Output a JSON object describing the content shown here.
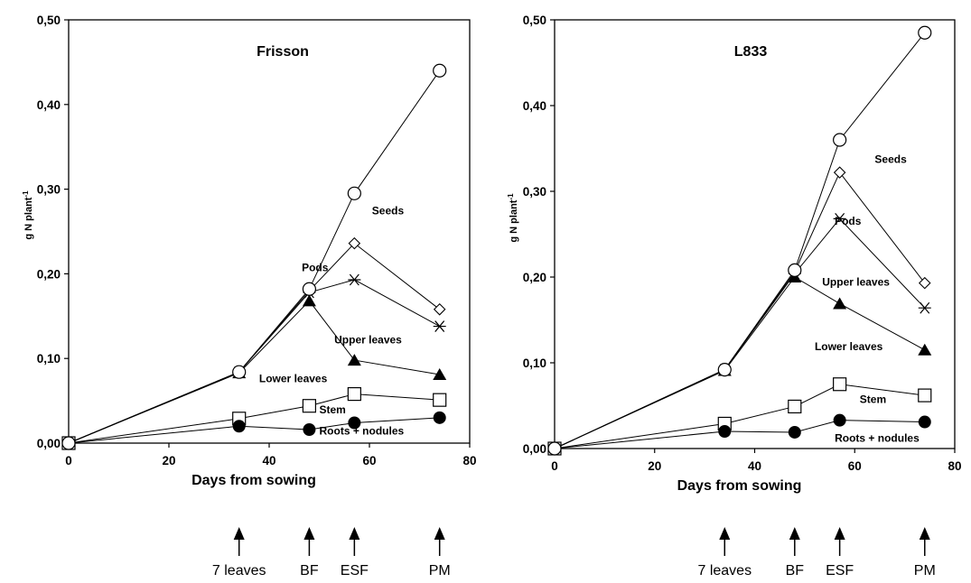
{
  "chart_data": [
    {
      "type": "line",
      "title": "Frisson",
      "xlabel": "Days from sowing",
      "ylabel": "g N plant",
      "ylabel_sup": "-1",
      "xlim": [
        0,
        80
      ],
      "ylim": [
        0,
        0.5
      ],
      "xticks": [
        0,
        20,
        40,
        60,
        80
      ],
      "xtick_labels": [
        "0",
        "20",
        "40",
        "60",
        "80"
      ],
      "yticks": [
        0,
        0.1,
        0.2,
        0.3,
        0.4,
        0.5
      ],
      "ytick_labels": [
        "0,00",
        "0,10",
        "0,20",
        "0,30",
        "0,40",
        "0,50"
      ],
      "grid": false,
      "x": [
        0,
        34,
        48,
        57,
        74
      ],
      "series": [
        {
          "name": "Seeds",
          "marker": "circle-open",
          "values": [
            0.0,
            0.084,
            0.182,
            0.295,
            0.44
          ]
        },
        {
          "name": "Pods",
          "marker": "diamond-open",
          "values": [
            0.0,
            0.084,
            0.18,
            0.236,
            0.158
          ]
        },
        {
          "name": "Upper leaves",
          "marker": "star",
          "values": [
            0.0,
            0.084,
            0.178,
            0.193,
            0.138
          ]
        },
        {
          "name": "Lower leaves",
          "marker": "triangle-filled",
          "values": [
            0.0,
            0.083,
            0.168,
            0.098,
            0.081
          ]
        },
        {
          "name": "Stem",
          "marker": "square-open",
          "values": [
            0.0,
            0.029,
            0.044,
            0.058,
            0.051
          ]
        },
        {
          "name": "Roots + nodules",
          "marker": "circle-filled",
          "values": [
            0.0,
            0.02,
            0.016,
            0.024,
            0.03
          ]
        }
      ],
      "annotations": [
        {
          "text": "Seeds",
          "x": 60.5,
          "y": 0.27
        },
        {
          "text": "Pods",
          "x": 46.5,
          "y": 0.203
        },
        {
          "text": "Upper leaves",
          "x": 53,
          "y": 0.118
        },
        {
          "text": "Lower leaves",
          "x": 38,
          "y": 0.072
        },
        {
          "text": "Stem",
          "x": 50,
          "y": 0.035
        },
        {
          "text": "Roots + nodules",
          "x": 50,
          "y": 0.01
        }
      ],
      "stages": [
        {
          "label": "7 leaves",
          "x": 34
        },
        {
          "label": "BF",
          "x": 48
        },
        {
          "label": "ESF",
          "x": 57
        },
        {
          "label": "PM",
          "x": 74
        }
      ]
    },
    {
      "type": "line",
      "title": "L833",
      "xlabel": "Days from sowing",
      "ylabel": "g N plant",
      "ylabel_sup": "-1",
      "xlim": [
        0,
        80
      ],
      "ylim": [
        0,
        0.5
      ],
      "xticks": [
        0,
        20,
        40,
        60,
        80
      ],
      "xtick_labels": [
        "0",
        "20",
        "40",
        "60",
        "80"
      ],
      "yticks": [
        0,
        0.1,
        0.2,
        0.3,
        0.4,
        0.5
      ],
      "ytick_labels": [
        "0,00",
        "0,10",
        "0,20",
        "0,30",
        "0,40",
        "0,50"
      ],
      "grid": false,
      "x": [
        0,
        34,
        48,
        57,
        74
      ],
      "series": [
        {
          "name": "Seeds",
          "marker": "circle-open",
          "values": [
            0.0,
            0.092,
            0.208,
            0.36,
            0.485
          ]
        },
        {
          "name": "Pods",
          "marker": "diamond-open",
          "values": [
            0.0,
            0.092,
            0.206,
            0.322,
            0.193
          ]
        },
        {
          "name": "Upper leaves",
          "marker": "star",
          "values": [
            0.0,
            0.092,
            0.204,
            0.268,
            0.164
          ]
        },
        {
          "name": "Lower leaves",
          "marker": "triangle-filled",
          "values": [
            0.0,
            0.091,
            0.2,
            0.169,
            0.115
          ]
        },
        {
          "name": "Stem",
          "marker": "square-open",
          "values": [
            0.0,
            0.029,
            0.049,
            0.075,
            0.062
          ]
        },
        {
          "name": "Roots + nodules",
          "marker": "circle-filled",
          "values": [
            0.0,
            0.02,
            0.019,
            0.033,
            0.031
          ]
        }
      ],
      "annotations": [
        {
          "text": "Seeds",
          "x": 64,
          "y": 0.333
        },
        {
          "text": "Pods",
          "x": 56,
          "y": 0.261
        },
        {
          "text": "Upper leaves",
          "x": 53.5,
          "y": 0.19
        },
        {
          "text": "Lower leaves",
          "x": 52,
          "y": 0.115
        },
        {
          "text": "Stem",
          "x": 61,
          "y": 0.053
        },
        {
          "text": "Roots + nodules",
          "x": 56,
          "y": 0.008
        }
      ],
      "stages": [
        {
          "label": "7 leaves",
          "x": 34
        },
        {
          "label": "BF",
          "x": 48
        },
        {
          "label": "ESF",
          "x": 57
        },
        {
          "label": "PM",
          "x": 74
        }
      ]
    }
  ]
}
